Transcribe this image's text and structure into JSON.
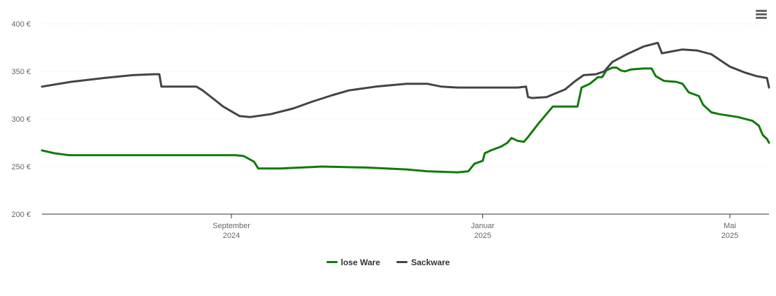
{
  "chart_data": {
    "type": "line",
    "title": "",
    "xlabel": "",
    "ylabel": "",
    "ylim": [
      200,
      400
    ],
    "y_ticks": [
      "200 €",
      "250 €",
      "300 €",
      "350 €",
      "400 €"
    ],
    "y_tick_values": [
      200,
      250,
      300,
      350,
      400
    ],
    "x_range": [
      "2024-06-01",
      "2025-05-20"
    ],
    "x_ticks": [
      {
        "date": "2024-09-01",
        "label": "September",
        "sub": "2024"
      },
      {
        "date": "2025-01-01",
        "label": "Januar",
        "sub": "2025"
      },
      {
        "date": "2025-05-01",
        "label": "Mai",
        "sub": "2025"
      }
    ],
    "grid": true,
    "legend_position": "bottom-center",
    "series": [
      {
        "name": "lose Ware",
        "color": "#107a0a",
        "points": [
          [
            "2024-06-01",
            267
          ],
          [
            "2024-06-07",
            264
          ],
          [
            "2024-06-14",
            262
          ],
          [
            "2024-07-15",
            262
          ],
          [
            "2024-08-15",
            262
          ],
          [
            "2024-09-03",
            262
          ],
          [
            "2024-09-07",
            261
          ],
          [
            "2024-09-12",
            255
          ],
          [
            "2024-09-14",
            248
          ],
          [
            "2024-09-25",
            248
          ],
          [
            "2024-10-15",
            250
          ],
          [
            "2024-11-05",
            249
          ],
          [
            "2024-11-25",
            247
          ],
          [
            "2024-12-05",
            245
          ],
          [
            "2024-12-20",
            244
          ],
          [
            "2024-12-25",
            245
          ],
          [
            "2024-12-28",
            253
          ],
          [
            "2025-01-01",
            256
          ],
          [
            "2025-01-02",
            264
          ],
          [
            "2025-01-05",
            267
          ],
          [
            "2025-01-10",
            271
          ],
          [
            "2025-01-13",
            275
          ],
          [
            "2025-01-15",
            280
          ],
          [
            "2025-01-18",
            277
          ],
          [
            "2025-01-21",
            276
          ],
          [
            "2025-01-23",
            281
          ],
          [
            "2025-01-28",
            295
          ],
          [
            "2025-02-04",
            313
          ],
          [
            "2025-02-16",
            313
          ],
          [
            "2025-02-18",
            333
          ],
          [
            "2025-02-22",
            337
          ],
          [
            "2025-02-26",
            344
          ],
          [
            "2025-02-28",
            344
          ],
          [
            "2025-03-02",
            351
          ],
          [
            "2025-03-05",
            354
          ],
          [
            "2025-03-07",
            354
          ],
          [
            "2025-03-09",
            351
          ],
          [
            "2025-03-11",
            350
          ],
          [
            "2025-03-14",
            352
          ],
          [
            "2025-03-20",
            353
          ],
          [
            "2025-03-24",
            353
          ],
          [
            "2025-03-26",
            345
          ],
          [
            "2025-03-30",
            340
          ],
          [
            "2025-04-05",
            339
          ],
          [
            "2025-04-08",
            337
          ],
          [
            "2025-04-11",
            328
          ],
          [
            "2025-04-16",
            324
          ],
          [
            "2025-04-18",
            315
          ],
          [
            "2025-04-22",
            307
          ],
          [
            "2025-04-26",
            305
          ],
          [
            "2025-05-05",
            302
          ],
          [
            "2025-05-12",
            298
          ],
          [
            "2025-05-15",
            293
          ],
          [
            "2025-05-17",
            283
          ],
          [
            "2025-05-19",
            279
          ],
          [
            "2025-05-20",
            275
          ]
        ]
      },
      {
        "name": "Sackware",
        "color": "#434348",
        "points": [
          [
            "2024-06-01",
            334
          ],
          [
            "2024-06-15",
            339
          ],
          [
            "2024-07-01",
            343
          ],
          [
            "2024-07-15",
            346
          ],
          [
            "2024-07-25",
            347
          ],
          [
            "2024-07-28",
            347
          ],
          [
            "2024-07-29",
            334
          ],
          [
            "2024-08-15",
            334
          ],
          [
            "2024-08-18",
            330
          ],
          [
            "2024-08-21",
            325
          ],
          [
            "2024-08-28",
            313
          ],
          [
            "2024-09-05",
            303
          ],
          [
            "2024-09-10",
            302
          ],
          [
            "2024-09-20",
            305
          ],
          [
            "2024-10-01",
            311
          ],
          [
            "2024-10-10",
            318
          ],
          [
            "2024-10-20",
            325
          ],
          [
            "2024-10-28",
            330
          ],
          [
            "2024-11-10",
            334
          ],
          [
            "2024-11-25",
            337
          ],
          [
            "2024-12-05",
            337
          ],
          [
            "2024-12-12",
            334
          ],
          [
            "2024-12-20",
            333
          ],
          [
            "2025-01-01",
            333
          ],
          [
            "2025-01-18",
            333
          ],
          [
            "2025-01-22",
            334
          ],
          [
            "2025-01-23",
            323
          ],
          [
            "2025-01-25",
            322
          ],
          [
            "2025-02-01",
            323
          ],
          [
            "2025-02-10",
            331
          ],
          [
            "2025-02-15",
            340
          ],
          [
            "2025-02-19",
            346
          ],
          [
            "2025-02-25",
            347
          ],
          [
            "2025-03-01",
            350
          ],
          [
            "2025-03-05",
            360
          ],
          [
            "2025-03-12",
            368
          ],
          [
            "2025-03-20",
            376
          ],
          [
            "2025-03-27",
            380
          ],
          [
            "2025-03-29",
            369
          ],
          [
            "2025-04-03",
            371
          ],
          [
            "2025-04-08",
            373
          ],
          [
            "2025-04-15",
            372
          ],
          [
            "2025-04-22",
            368
          ],
          [
            "2025-05-01",
            355
          ],
          [
            "2025-05-08",
            349
          ],
          [
            "2025-05-14",
            345
          ],
          [
            "2025-05-19",
            343
          ],
          [
            "2025-05-20",
            333
          ]
        ]
      }
    ]
  },
  "toolbar": {
    "menu_icon": "hamburger-menu-icon"
  }
}
